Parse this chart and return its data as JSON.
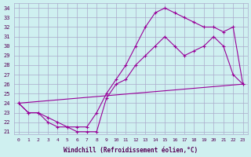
{
  "xlabel": "Windchill (Refroidissement éolien,°C)",
  "bg_color": "#cff0f0",
  "grid_color": "#aaaacc",
  "line_color": "#990099",
  "xlim": [
    -0.5,
    23.5
  ],
  "ylim": [
    20.7,
    34.5
  ],
  "yticks": [
    21,
    22,
    23,
    24,
    25,
    26,
    27,
    28,
    29,
    30,
    31,
    32,
    33,
    34
  ],
  "xticks": [
    0,
    1,
    2,
    3,
    4,
    5,
    6,
    7,
    8,
    9,
    10,
    11,
    12,
    13,
    14,
    15,
    16,
    17,
    18,
    19,
    20,
    21,
    22,
    23
  ],
  "series": [
    {
      "x": [
        0,
        1,
        2,
        3,
        4,
        5,
        6,
        7,
        8,
        9,
        10,
        11,
        12,
        13,
        14,
        15,
        16,
        17,
        18,
        19,
        20,
        21,
        22,
        23
      ],
      "y": [
        24,
        23,
        23,
        22.5,
        22,
        21.5,
        21.5,
        21.5,
        23,
        25,
        26.5,
        28,
        30,
        32,
        33.5,
        34,
        33.5,
        33,
        32.5,
        32,
        32,
        31.5,
        32,
        26
      ]
    },
    {
      "x": [
        0,
        1,
        2,
        3,
        4,
        5,
        6,
        7,
        8,
        9,
        10,
        11,
        12,
        13,
        14,
        15,
        16,
        17,
        18,
        19,
        20,
        21,
        22,
        23
      ],
      "y": [
        24,
        23,
        23,
        22,
        21.5,
        21.5,
        21,
        21,
        21,
        24.5,
        26,
        26.5,
        28,
        29,
        30,
        31,
        30,
        29,
        29.5,
        30,
        31,
        30,
        27,
        26
      ]
    },
    {
      "x": [
        0,
        23
      ],
      "y": [
        24,
        26
      ]
    }
  ]
}
